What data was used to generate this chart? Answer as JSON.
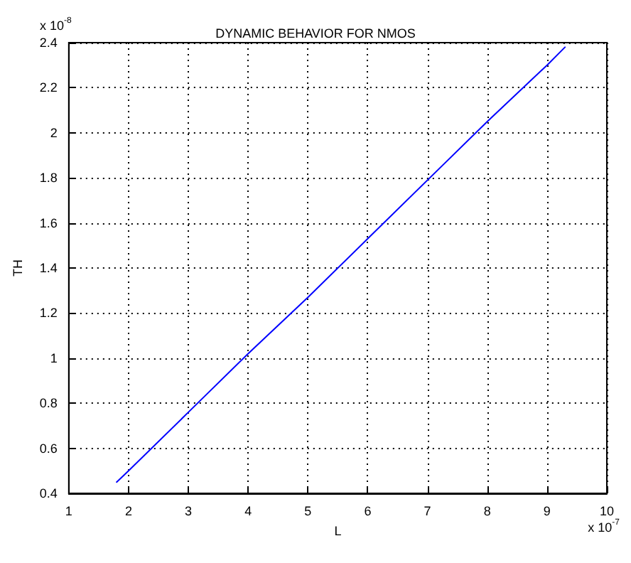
{
  "chart_data": {
    "type": "line",
    "title": "DYNAMIC BEHAVIOR FOR NMOS",
    "xlabel": "L",
    "ylabel": "TH",
    "annotations": [
      "x 10$^{-8}$",
      "x 10$^{-7}$"
    ],
    "x": [
      1.8,
      2,
      3,
      4,
      5,
      6,
      7,
      8,
      9,
      9.3
    ],
    "series": [
      {
        "color": "#0000ff",
        "values": [
          0.45,
          0.5,
          0.76,
          1.02,
          1.27,
          1.53,
          1.79,
          2.05,
          2.3,
          2.38
        ]
      }
    ],
    "xlim": [
      1,
      10
    ],
    "xticks": [
      1,
      2,
      3,
      4,
      5,
      6,
      7,
      8,
      9,
      10
    ],
    "ylim": [
      0.4,
      2.4
    ],
    "yticks": [
      0.4,
      0.6,
      0.8,
      1,
      1.2,
      1.4,
      1.6,
      1.8,
      2,
      2.2,
      2.4
    ],
    "grid": true,
    "marker": "none",
    "line_style": "solid"
  }
}
